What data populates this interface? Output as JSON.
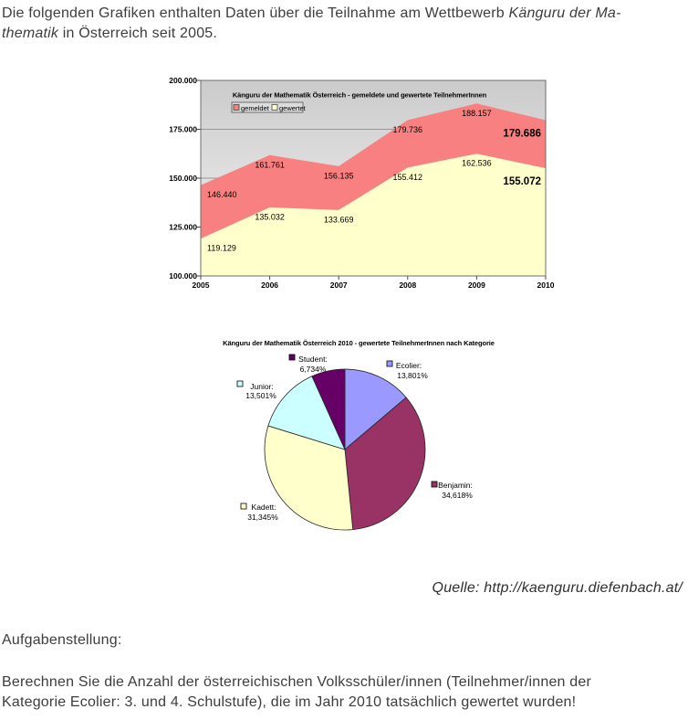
{
  "intro": {
    "line1": [
      {
        "t": "Die folgenden Grafiken enthalten Daten über die Teilnahme am Wettbewerb ",
        "i": false
      },
      {
        "t": "Känguru der Ma-",
        "i": true
      }
    ],
    "line2": [
      {
        "t": "thematik",
        "i": true
      },
      {
        "t": " in Österreich seit 2005.",
        "i": false
      }
    ]
  },
  "source_line": "Quelle: http://kaenguru.diefenbach.at/",
  "task": {
    "heading": "Aufgabenstellung:",
    "line1": "Berechnen Sie die Anzahl der österreichischen Volksschüler/innen (Teilnehmer/innen der",
    "line2": "Kategorie Ecolier: 3. und 4. Schulstufe), die im Jahr 2010 tatsächlich gewertet wurden!"
  },
  "chart_data": [
    {
      "type": "area",
      "title": "Känguru der Mathematik Österreich - gemeldete und gewertete TeilnehmerInnen",
      "categories": [
        "2005",
        "2006",
        "2007",
        "2008",
        "2009",
        "2010"
      ],
      "series": [
        {
          "name": "gemeldet",
          "color": "#f98080",
          "values": [
            146440,
            161761,
            156135,
            179736,
            188157,
            179686
          ],
          "point_labels": [
            "146.440",
            "161.761",
            "156.135",
            "179.736",
            "188.157",
            "179.686"
          ]
        },
        {
          "name": "gewertet",
          "color": "#ffffcc",
          "values": [
            119129,
            135032,
            133669,
            155412,
            162536,
            155072
          ],
          "point_labels": [
            "119.129",
            "135.032",
            "133.669",
            "155.412",
            "162.536",
            "155.072"
          ]
        }
      ],
      "ylim": [
        100000,
        200000
      ],
      "ylabels": [
        "100.000",
        "125.000",
        "150.000",
        "175.000",
        "200.000"
      ],
      "grid": true,
      "legend_position": "top-left",
      "plot_bg_gradient": [
        "#cbcbcb",
        "#f4f4f4"
      ],
      "last_point_bold": true
    },
    {
      "type": "pie",
      "title": "Känguru der Mathematik Österreich 2010 - gewertete TeilnehmerInnen nach Kategorie",
      "start_angle": "12-oclock",
      "direction": "clockwise",
      "slices": [
        {
          "label": "Ecolier",
          "value": 13.801,
          "display": "13,801%",
          "color": "#9999ff"
        },
        {
          "label": "Benjamin",
          "value": 34.618,
          "display": "34,618%",
          "color": "#993366"
        },
        {
          "label": "Kadett",
          "value": 31.345,
          "display": "31,345%",
          "color": "#ffffcc"
        },
        {
          "label": "Junior",
          "value": 13.501,
          "display": "13,501%",
          "color": "#ccffff"
        },
        {
          "label": "Student",
          "value": 6.734,
          "display": "6,734%",
          "color": "#660066"
        }
      ]
    }
  ]
}
